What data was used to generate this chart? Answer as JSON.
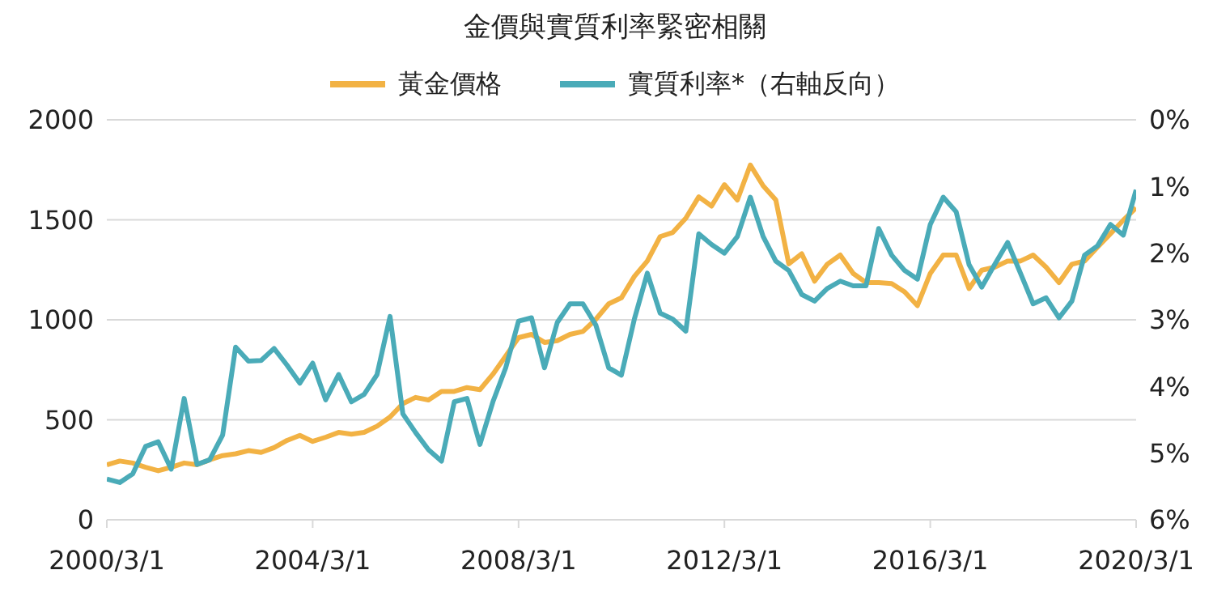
{
  "chart_data": {
    "type": "line",
    "title": "金價與實質利率緊密相關",
    "legend": "top",
    "grid": "y",
    "line_style": "solid",
    "marker": "none",
    "x": [
      "2000-03",
      "2000-06",
      "2000-09",
      "2000-12",
      "2001-03",
      "2001-06",
      "2001-09",
      "2001-12",
      "2002-03",
      "2002-06",
      "2002-09",
      "2002-12",
      "2003-03",
      "2003-06",
      "2003-09",
      "2003-12",
      "2004-03",
      "2004-06",
      "2004-09",
      "2004-12",
      "2005-03",
      "2005-06",
      "2005-09",
      "2005-12",
      "2006-03",
      "2006-06",
      "2006-09",
      "2006-12",
      "2007-03",
      "2007-06",
      "2007-09",
      "2007-12",
      "2008-03",
      "2008-06",
      "2008-09",
      "2008-12",
      "2009-03",
      "2009-06",
      "2009-09",
      "2009-12",
      "2010-03",
      "2010-06",
      "2010-09",
      "2010-12",
      "2011-03",
      "2011-06",
      "2011-09",
      "2011-12",
      "2012-03",
      "2012-06",
      "2012-09",
      "2012-12",
      "2013-03",
      "2013-06",
      "2013-09",
      "2013-12",
      "2014-03",
      "2014-06",
      "2014-09",
      "2014-12",
      "2015-03",
      "2015-06",
      "2015-09",
      "2015-12",
      "2016-03",
      "2016-06",
      "2016-09",
      "2016-12",
      "2017-03",
      "2017-06",
      "2017-09",
      "2017-12",
      "2018-03",
      "2018-06",
      "2018-09",
      "2018-12",
      "2019-03",
      "2019-06",
      "2019-09",
      "2019-12",
      "2020-03"
    ],
    "xlim": [
      "2000-03-01",
      "2020-03-01"
    ],
    "xticks": [
      {
        "value": "2000-03-01",
        "label": "2000/3/1"
      },
      {
        "value": "2004-03-01",
        "label": "2004/3/1"
      },
      {
        "value": "2008-03-01",
        "label": "2008/3/1"
      },
      {
        "value": "2012-03-01",
        "label": "2012/3/1"
      },
      {
        "value": "2016-03-01",
        "label": "2016/3/1"
      },
      {
        "value": "2020-03-01",
        "label": "2020/3/1"
      }
    ],
    "ylim": [
      0,
      2000
    ],
    "yticks": [
      0,
      500,
      1000,
      1500,
      2000
    ],
    "y2lim": [
      6,
      0
    ],
    "y2ticks": [
      {
        "value": 0,
        "label": "0%"
      },
      {
        "value": 1,
        "label": "1%"
      },
      {
        "value": 2,
        "label": "2%"
      },
      {
        "value": 3,
        "label": "3%"
      },
      {
        "value": 4,
        "label": "4%"
      },
      {
        "value": 5,
        "label": "5%"
      },
      {
        "value": 6,
        "label": "6%"
      }
    ],
    "series": [
      {
        "name": "黃金價格",
        "color": "#f2b244",
        "values": [
          275,
          294,
          284,
          263,
          245,
          263,
          284,
          275,
          300,
          321,
          330,
          346,
          337,
          361,
          397,
          422,
          392,
          413,
          437,
          428,
          437,
          468,
          514,
          581,
          612,
          599,
          642,
          642,
          661,
          651,
          728,
          819,
          911,
          927,
          887,
          896,
          927,
          942,
          1003,
          1080,
          1110,
          1217,
          1294,
          1416,
          1437,
          1508,
          1615,
          1569,
          1676,
          1599,
          1774,
          1670,
          1599,
          1280,
          1330,
          1193,
          1278,
          1324,
          1232,
          1186,
          1186,
          1181,
          1140,
          1071,
          1232,
          1324,
          1324,
          1156,
          1248,
          1263,
          1294,
          1294,
          1324,
          1263,
          1186,
          1278,
          1294,
          1364,
          1431,
          1498,
          1560
        ]
      },
      {
        "name": "實質利率*（右軸反向）",
        "color": "#4aabb8",
        "axis": "y2",
        "values": [
          5.39,
          5.44,
          5.31,
          4.9,
          4.83,
          5.24,
          4.18,
          5.17,
          5.1,
          4.73,
          3.41,
          3.62,
          3.61,
          3.43,
          3.68,
          3.95,
          3.65,
          4.2,
          3.82,
          4.23,
          4.12,
          3.82,
          2.95,
          4.41,
          4.69,
          4.95,
          5.12,
          4.23,
          4.18,
          4.87,
          4.23,
          3.72,
          3.02,
          2.97,
          3.72,
          3.04,
          2.76,
          2.76,
          3.08,
          3.72,
          3.83,
          2.99,
          2.3,
          2.9,
          2.99,
          3.17,
          1.71,
          1.87,
          2.0,
          1.75,
          1.16,
          1.75,
          2.12,
          2.26,
          2.62,
          2.72,
          2.53,
          2.42,
          2.49,
          2.49,
          1.63,
          2.03,
          2.26,
          2.39,
          1.57,
          1.16,
          1.38,
          2.17,
          2.51,
          2.17,
          1.84,
          2.3,
          2.76,
          2.67,
          2.97,
          2.72,
          2.03,
          1.89,
          1.57,
          1.73,
          1.05
        ]
      }
    ]
  }
}
